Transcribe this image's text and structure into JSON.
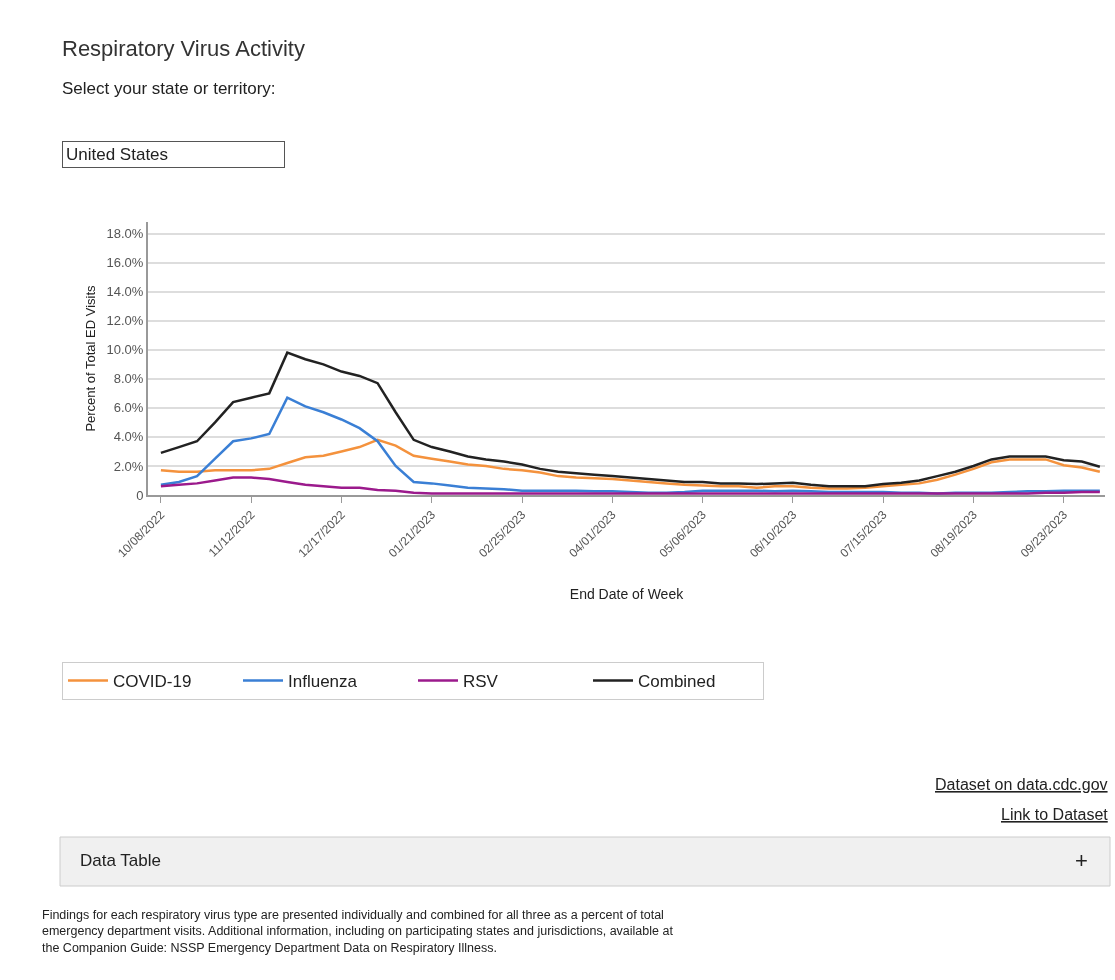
{
  "chart_data": {
    "type": "line",
    "title": "Respiratory Virus Activity",
    "subtitle": "Select your state or territory:",
    "xlabel": "End Date of Week",
    "ylabel": "Percent of Total ED Visits",
    "x": [
      "2022-10-08",
      "2022-10-15",
      "2022-10-22",
      "2022-10-29",
      "2022-11-05",
      "2022-11-12",
      "2022-11-19",
      "2022-11-26",
      "2022-12-03",
      "2022-12-10",
      "2022-12-17",
      "2022-12-24",
      "2022-12-31",
      "2023-01-07",
      "2023-01-14",
      "2023-01-21",
      "2023-01-28",
      "2023-02-04",
      "2023-02-11",
      "2023-02-18",
      "2023-02-25",
      "2023-03-04",
      "2023-03-11",
      "2023-03-18",
      "2023-03-25",
      "2023-04-01",
      "2023-04-08",
      "2023-04-15",
      "2023-04-22",
      "2023-04-29",
      "2023-05-06",
      "2023-05-13",
      "2023-05-20",
      "2023-05-27",
      "2023-06-03",
      "2023-06-10",
      "2023-06-17",
      "2023-06-24",
      "2023-07-01",
      "2023-07-08",
      "2023-07-15",
      "2023-07-22",
      "2023-07-29",
      "2023-08-05",
      "2023-08-12",
      "2023-08-19",
      "2023-08-26",
      "2023-09-02",
      "2023-09-09",
      "2023-09-16",
      "2023-09-23",
      "2023-09-30",
      "2023-10-07"
    ],
    "series": [
      {
        "name": "COVID-19",
        "color": "#f4923d",
        "values": [
          1.7,
          1.6,
          1.6,
          1.7,
          1.7,
          1.7,
          1.8,
          2.2,
          2.6,
          2.7,
          3.0,
          3.3,
          3.8,
          3.4,
          2.7,
          2.5,
          2.3,
          2.1,
          2.0,
          1.8,
          1.7,
          1.55,
          1.3,
          1.2,
          1.15,
          1.1,
          1.0,
          0.9,
          0.8,
          0.7,
          0.65,
          0.6,
          0.6,
          0.5,
          0.6,
          0.6,
          0.5,
          0.45,
          0.45,
          0.5,
          0.6,
          0.7,
          0.8,
          1.05,
          1.4,
          1.8,
          2.25,
          2.45,
          2.45,
          2.45,
          2.05,
          1.9,
          1.6
        ]
      },
      {
        "name": "Influenza",
        "color": "#3a7fd5",
        "values": [
          0.7,
          0.9,
          1.3,
          2.5,
          3.7,
          3.9,
          4.2,
          6.7,
          6.1,
          5.7,
          5.2,
          4.6,
          3.7,
          2.0,
          0.9,
          0.8,
          0.65,
          0.5,
          0.45,
          0.4,
          0.3,
          0.3,
          0.3,
          0.3,
          0.25,
          0.25,
          0.2,
          0.15,
          0.15,
          0.2,
          0.3,
          0.3,
          0.3,
          0.3,
          0.25,
          0.3,
          0.25,
          0.2,
          0.2,
          0.2,
          0.2,
          0.15,
          0.15,
          0.1,
          0.15,
          0.15,
          0.15,
          0.2,
          0.25,
          0.25,
          0.3,
          0.3,
          0.3
        ]
      },
      {
        "name": "RSV",
        "color": "#9b1a8c",
        "values": [
          0.6,
          0.7,
          0.8,
          1.0,
          1.2,
          1.2,
          1.1,
          0.9,
          0.7,
          0.6,
          0.5,
          0.5,
          0.35,
          0.3,
          0.15,
          0.1,
          0.1,
          0.1,
          0.1,
          0.1,
          0.1,
          0.1,
          0.1,
          0.1,
          0.1,
          0.1,
          0.1,
          0.1,
          0.1,
          0.1,
          0.1,
          0.1,
          0.1,
          0.1,
          0.1,
          0.1,
          0.1,
          0.1,
          0.1,
          0.1,
          0.1,
          0.1,
          0.1,
          0.1,
          0.1,
          0.1,
          0.1,
          0.1,
          0.1,
          0.15,
          0.15,
          0.2,
          0.2
        ]
      },
      {
        "name": "Combined",
        "color": "#222222",
        "values": [
          2.9,
          3.3,
          3.7,
          5.0,
          6.4,
          6.7,
          7.0,
          9.8,
          9.35,
          9.0,
          8.5,
          8.2,
          7.7,
          5.7,
          3.8,
          3.3,
          3.0,
          2.65,
          2.45,
          2.3,
          2.1,
          1.8,
          1.6,
          1.5,
          1.4,
          1.3,
          1.2,
          1.1,
          1.0,
          0.9,
          0.9,
          0.8,
          0.8,
          0.75,
          0.8,
          0.85,
          0.7,
          0.6,
          0.6,
          0.6,
          0.75,
          0.85,
          1.0,
          1.3,
          1.6,
          2.0,
          2.45,
          2.65,
          2.65,
          2.65,
          2.4,
          2.3,
          1.95
        ]
      }
    ],
    "xlim": [
      "2022-10-03",
      "2023-10-09"
    ],
    "xticks": [
      {
        "value": "2022-10-08",
        "label": "10/08/2022"
      },
      {
        "value": "2022-11-12",
        "label": "11/12/2022"
      },
      {
        "value": "2022-12-17",
        "label": "12/17/2022"
      },
      {
        "value": "2023-01-21",
        "label": "01/21/2023"
      },
      {
        "value": "2023-02-25",
        "label": "02/25/2023"
      },
      {
        "value": "2023-04-01",
        "label": "04/01/2023"
      },
      {
        "value": "2023-05-06",
        "label": "05/06/2023"
      },
      {
        "value": "2023-06-10",
        "label": "06/10/2023"
      },
      {
        "value": "2023-07-15",
        "label": "07/15/2023"
      },
      {
        "value": "2023-08-19",
        "label": "08/19/2023"
      },
      {
        "value": "2023-09-23",
        "label": "09/23/2023"
      }
    ],
    "ylim": [
      0,
      18.8
    ],
    "yticks": [
      0,
      {
        "value": 2,
        "label": "2.0%"
      },
      {
        "value": 4,
        "label": "4.0%"
      },
      {
        "value": 6,
        "label": "6.0%"
      },
      {
        "value": 8,
        "label": "8.0%"
      },
      {
        "value": 10,
        "label": "10.0%"
      },
      {
        "value": 12,
        "label": "12.0%"
      },
      {
        "value": 14,
        "label": "14.0%"
      },
      {
        "value": 16,
        "label": "16.0%"
      },
      {
        "value": 18,
        "label": "18.0%"
      }
    ],
    "grid": "y",
    "legend": "bottom",
    "marker": "none",
    "line_style": "solid",
    "annotations": [
      "United States",
      "Dataset on data.cdc.gov",
      "Link to Dataset",
      "Data Table",
      "+",
      "Findings for each respiratory virus type are presented individually and combined for all three as a percent of total emergency department visits. Additional information, including on participating states and jurisdictions, available at the Companion Guide: NSSP Emergency Department Data on Respiratory Illness."
    ]
  }
}
